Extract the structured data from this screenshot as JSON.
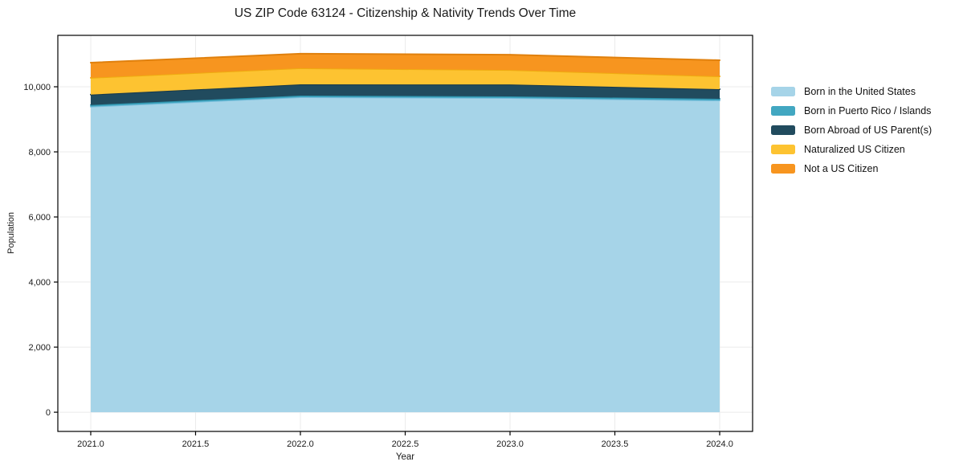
{
  "chart_data": {
    "type": "area",
    "stacked": true,
    "title": "US ZIP Code 63124 - Citizenship & Nativity Trends Over Time",
    "xlabel": "Year",
    "ylabel": "Population",
    "x": [
      2021,
      2022,
      2023,
      2024
    ],
    "series": [
      {
        "name": "Born in the United States",
        "values": [
          9390,
          9680,
          9655,
          9580
        ],
        "fill": "#A6D4E8",
        "edge": "#79BEDC"
      },
      {
        "name": "Born in Puerto Rico / Islands",
        "values": [
          50,
          50,
          50,
          50
        ],
        "fill": "#42A7C1",
        "edge": "#2D92AC"
      },
      {
        "name": "Born Abroad of US Parent(s)",
        "values": [
          320,
          345,
          365,
          295
        ],
        "fill": "#214B5E",
        "edge": "#16384A"
      },
      {
        "name": "Naturalized US Citizen",
        "values": [
          515,
          495,
          445,
          395
        ],
        "fill": "#FDC331",
        "edge": "#EFAC10"
      },
      {
        "name": "Not a US Citizen",
        "values": [
          465,
          445,
          470,
          495
        ],
        "fill": "#F7951F",
        "edge": "#E0800D"
      }
    ],
    "xlim": [
      2020.843,
      2024.157
    ],
    "ylim": [
      -590,
      11580
    ],
    "xticks": {
      "values": [
        2021.0,
        2021.5,
        2022.0,
        2022.5,
        2023.0,
        2023.5,
        2024.0
      ],
      "labels": [
        "2021.0",
        "2021.5",
        "2022.0",
        "2022.5",
        "2023.0",
        "2023.5",
        "2024.0"
      ]
    },
    "yticks": {
      "values": [
        0,
        2000,
        4000,
        6000,
        8000,
        10000
      ],
      "labels": [
        "0",
        "2,000",
        "4,000",
        "6,000",
        "8,000",
        "10,000"
      ]
    },
    "grid": true,
    "legend_position": "right-outside"
  },
  "colors": {
    "background": "#ffffff",
    "grid": "#ebebeb",
    "spine": "#000000",
    "tick": "#000000",
    "text": "#1a1a1a"
  }
}
